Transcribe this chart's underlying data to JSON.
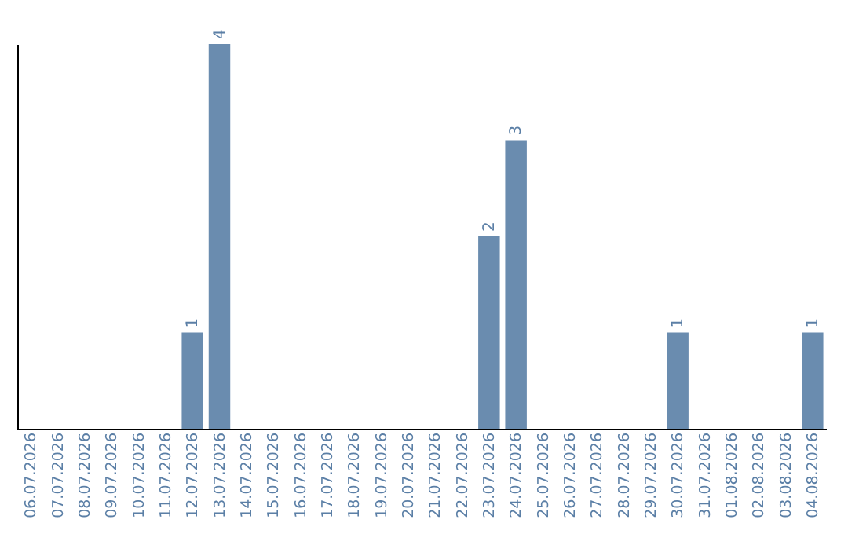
{
  "chart_data": {
    "type": "bar",
    "categories": [
      "06.07.2026",
      "07.07.2026",
      "08.07.2026",
      "09.07.2026",
      "10.07.2026",
      "11.07.2026",
      "12.07.2026",
      "13.07.2026",
      "14.07.2026",
      "15.07.2026",
      "16.07.2026",
      "17.07.2026",
      "18.07.2026",
      "19.07.2026",
      "20.07.2026",
      "21.07.2026",
      "22.07.2026",
      "23.07.2026",
      "24.07.2026",
      "25.07.2026",
      "26.07.2026",
      "27.07.2026",
      "28.07.2026",
      "29.07.2026",
      "30.07.2026",
      "31.07.2026",
      "01.08.2026",
      "02.08.2026",
      "03.08.2026",
      "04.08.2026"
    ],
    "values": [
      0,
      0,
      0,
      0,
      0,
      0,
      1,
      4,
      0,
      0,
      0,
      0,
      0,
      0,
      0,
      0,
      0,
      2,
      3,
      0,
      0,
      0,
      0,
      0,
      1,
      0,
      0,
      0,
      0,
      1
    ],
    "value_labels": [
      null,
      null,
      null,
      null,
      null,
      null,
      "1",
      "4",
      null,
      null,
      null,
      null,
      null,
      null,
      null,
      null,
      null,
      "2",
      "3",
      null,
      null,
      null,
      null,
      null,
      "1",
      null,
      null,
      null,
      null,
      "1"
    ],
    "color": "#6a8caf",
    "tick_labels": "x"
  }
}
